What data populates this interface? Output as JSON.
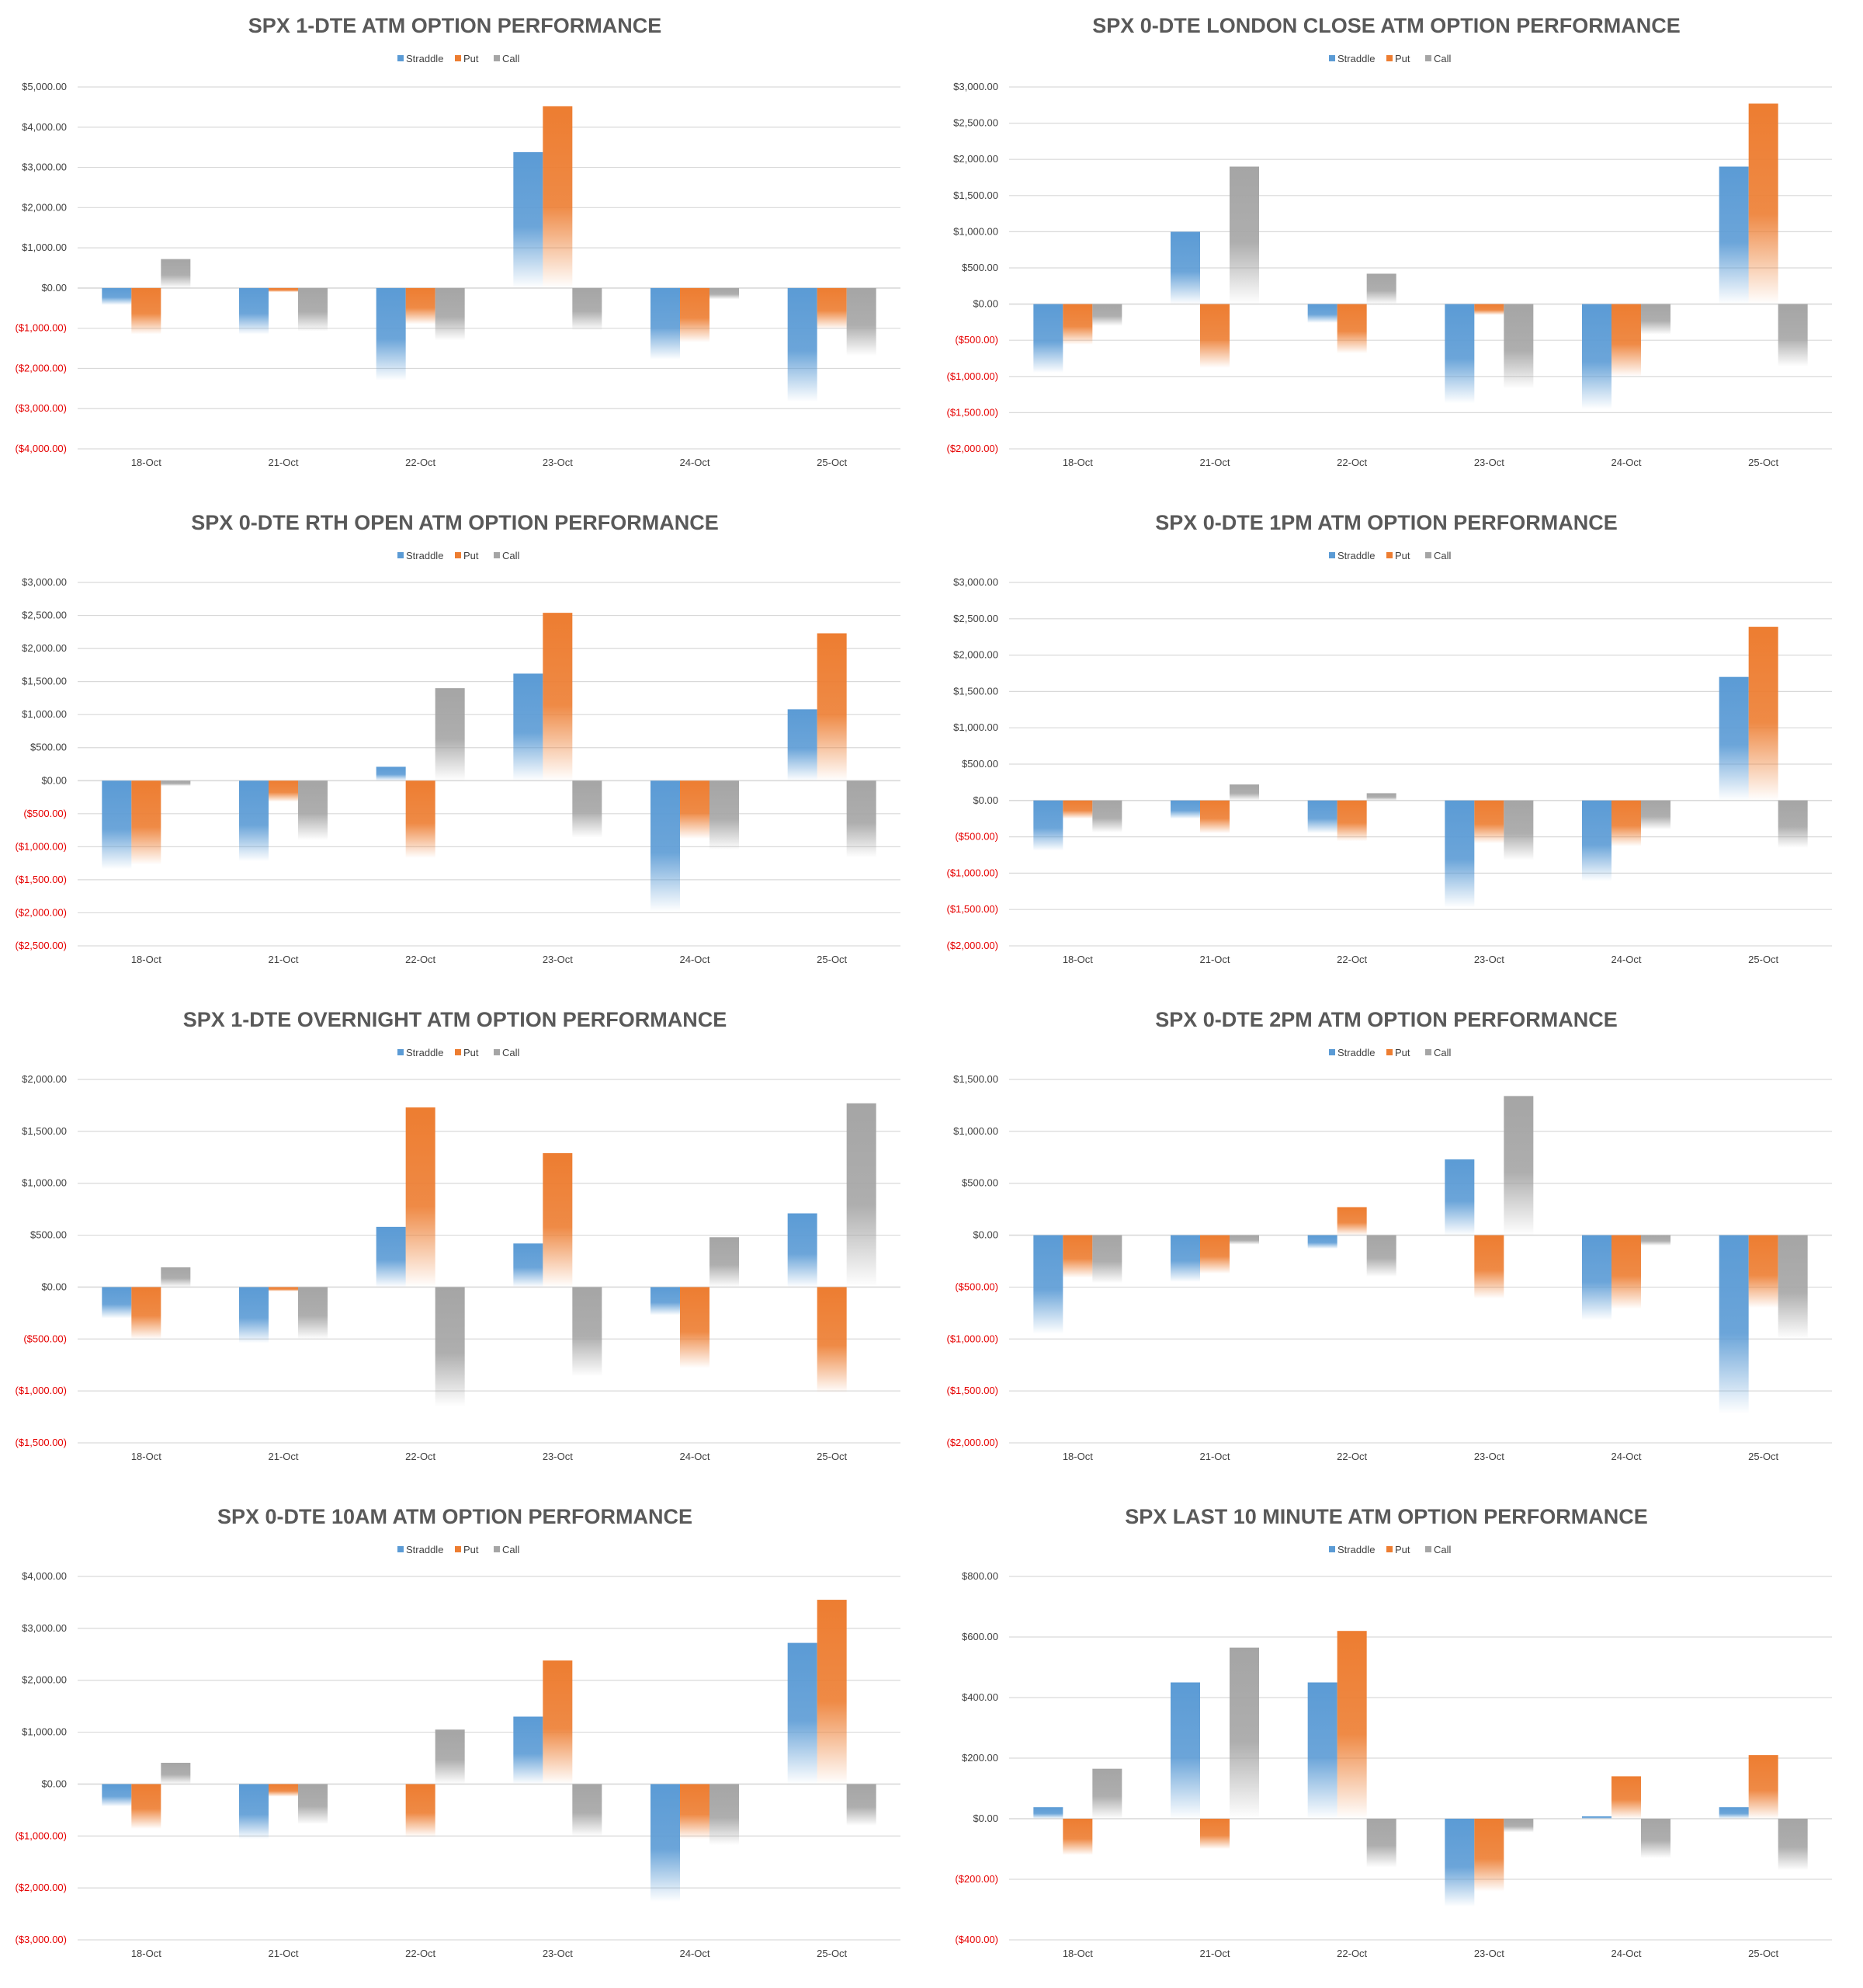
{
  "legend": [
    "Straddle",
    "Put",
    "Call"
  ],
  "colors": {
    "Straddle": "#5B9BD5",
    "Put": "#ED7D31",
    "Call": "#A5A5A5",
    "negative_tick": "#E60000",
    "tick": "#404040",
    "title": "#595959",
    "grid": "#D9D9D9"
  },
  "chart_data": [
    {
      "type": "bar",
      "title": "SPX 1-DTE ATM OPTION PERFORMANCE",
      "categories": [
        "18-Oct",
        "21-Oct",
        "22-Oct",
        "23-Oct",
        "24-Oct",
        "25-Oct"
      ],
      "yticks": [
        "$5,000.00",
        "$4,000.00",
        "$3,000.00",
        "$2,000.00",
        "$1,000.00",
        "$0.00",
        "($1,000.00)",
        "($2,000.00)",
        "($3,000.00)",
        "($4,000.00)"
      ],
      "ylim": [
        -4000,
        5000
      ],
      "legend_position": "top",
      "series": [
        {
          "name": "Straddle",
          "values": [
            -420,
            -1150,
            -2300,
            3380,
            -1780,
            -2830
          ]
        },
        {
          "name": "Put",
          "values": [
            -1150,
            -100,
            -900,
            4520,
            -1350,
            -1020
          ]
        },
        {
          "name": "Call",
          "values": [
            720,
            -1080,
            -1300,
            -1050,
            -280,
            -1680
          ]
        }
      ]
    },
    {
      "type": "bar",
      "title": "SPX 0-DTE  LONDON CLOSE ATM OPTION PERFORMANCE",
      "categories": [
        "18-Oct",
        "21-Oct",
        "22-Oct",
        "23-Oct",
        "24-Oct",
        "25-Oct"
      ],
      "yticks": [
        "$3,000.00",
        "$2,500.00",
        "$2,000.00",
        "$1,500.00",
        "$1,000.00",
        "$500.00",
        "$0.00",
        "($500.00)",
        "($1,000.00)",
        "($1,500.00)",
        "($2,000.00)"
      ],
      "ylim": [
        -2000,
        3000
      ],
      "legend_position": "top",
      "series": [
        {
          "name": "Straddle",
          "values": [
            -950,
            1000,
            -260,
            -1370,
            -1450,
            1900
          ]
        },
        {
          "name": "Put",
          "values": [
            -560,
            -880,
            -680,
            -150,
            -1000,
            2770
          ]
        },
        {
          "name": "Call",
          "values": [
            -300,
            1900,
            420,
            -1170,
            -420,
            -860
          ]
        }
      ]
    },
    {
      "type": "bar",
      "title": "SPX 0-DTE RTH OPEN ATM OPTION PERFORMANCE",
      "categories": [
        "18-Oct",
        "21-Oct",
        "22-Oct",
        "23-Oct",
        "24-Oct",
        "25-Oct"
      ],
      "yticks": [
        "$3,000.00",
        "$2,500.00",
        "$2,000.00",
        "$1,500.00",
        "$1,000.00",
        "$500.00",
        "$0.00",
        "($500.00)",
        "($1,000.00)",
        "($1,500.00)",
        "($2,000.00)",
        "($2,500.00)"
      ],
      "ylim": [
        -2500,
        3000
      ],
      "legend_position": "top",
      "series": [
        {
          "name": "Straddle",
          "values": [
            -1340,
            -1220,
            210,
            1620,
            -1980,
            1080
          ]
        },
        {
          "name": "Put",
          "values": [
            -1270,
            -320,
            -1170,
            2540,
            -880,
            2230
          ]
        },
        {
          "name": "Call",
          "values": [
            -80,
            -900,
            1400,
            -860,
            -1050,
            -1160
          ]
        }
      ]
    },
    {
      "type": "bar",
      "title": "SPX 0-DTE 1PM ATM OPTION PERFORMANCE",
      "categories": [
        "18-Oct",
        "21-Oct",
        "22-Oct",
        "23-Oct",
        "24-Oct",
        "25-Oct"
      ],
      "yticks": [
        "$3,000.00",
        "$2,500.00",
        "$2,000.00",
        "$1,500.00",
        "$1,000.00",
        "$500.00",
        "$0.00",
        "($500.00)",
        "($1,000.00)",
        "($1,500.00)",
        "($2,000.00)"
      ],
      "ylim": [
        -2000,
        3000
      ],
      "legend_position": "top",
      "series": [
        {
          "name": "Straddle",
          "values": [
            -690,
            -250,
            -450,
            -1470,
            -1110,
            1700
          ]
        },
        {
          "name": "Put",
          "values": [
            -250,
            -450,
            -560,
            -590,
            -630,
            2390
          ]
        },
        {
          "name": "Call",
          "values": [
            -440,
            220,
            100,
            -820,
            -400,
            -650
          ]
        }
      ]
    },
    {
      "type": "bar",
      "title": "SPX 1-DTE OVERNIGHT ATM OPTION PERFORMANCE",
      "categories": [
        "18-Oct",
        "21-Oct",
        "22-Oct",
        "23-Oct",
        "24-Oct",
        "25-Oct"
      ],
      "yticks": [
        "$2,000.00",
        "$1,500.00",
        "$1,000.00",
        "$500.00",
        "$0.00",
        "($500.00)",
        "($1,000.00)",
        "($1,500.00)"
      ],
      "ylim": [
        -1500,
        2000
      ],
      "legend_position": "top",
      "series": [
        {
          "name": "Straddle",
          "values": [
            -300,
            -540,
            580,
            420,
            -270,
            710
          ]
        },
        {
          "name": "Put",
          "values": [
            -500,
            -40,
            1730,
            1290,
            -780,
            -1020
          ]
        },
        {
          "name": "Call",
          "values": [
            190,
            -500,
            -1150,
            -860,
            480,
            1770
          ]
        }
      ]
    },
    {
      "type": "bar",
      "title": "SPX 0-DTE 2PM ATM OPTION PERFORMANCE",
      "categories": [
        "18-Oct",
        "21-Oct",
        "22-Oct",
        "23-Oct",
        "24-Oct",
        "25-Oct"
      ],
      "yticks": [
        "$1,500.00",
        "$1,000.00",
        "$500.00",
        "$0.00",
        "($500.00)",
        "($1,000.00)",
        "($1,500.00)",
        "($2,000.00)"
      ],
      "ylim": [
        -2000,
        1500
      ],
      "legend_position": "top",
      "series": [
        {
          "name": "Straddle",
          "values": [
            -950,
            -450,
            -130,
            730,
            -820,
            -1720
          ]
        },
        {
          "name": "Put",
          "values": [
            -410,
            -370,
            270,
            -610,
            -710,
            -700
          ]
        },
        {
          "name": "Call",
          "values": [
            -460,
            -90,
            -400,
            1340,
            -100,
            -1000
          ]
        }
      ]
    },
    {
      "type": "bar",
      "title": "SPX 0-DTE 10AM ATM OPTION PERFORMANCE",
      "categories": [
        "18-Oct",
        "21-Oct",
        "22-Oct",
        "23-Oct",
        "24-Oct",
        "25-Oct"
      ],
      "yticks": [
        "$4,000.00",
        "$3,000.00",
        "$2,000.00",
        "$1,000.00",
        "$0.00",
        "($1,000.00)",
        "($2,000.00)",
        "($3,000.00)"
      ],
      "ylim": [
        -3000,
        4000
      ],
      "legend_position": "top",
      "series": [
        {
          "name": "Straddle",
          "values": [
            -430,
            -1060,
            0,
            1300,
            -2270,
            2720
          ]
        },
        {
          "name": "Put",
          "values": [
            -860,
            -240,
            -1010,
            2380,
            -1060,
            3550
          ]
        },
        {
          "name": "Call",
          "values": [
            410,
            -770,
            1050,
            -1000,
            -1170,
            -800
          ]
        }
      ]
    },
    {
      "type": "bar",
      "title": "SPX LAST 10 MINUTE ATM OPTION PERFORMANCE",
      "categories": [
        "18-Oct",
        "21-Oct",
        "22-Oct",
        "23-Oct",
        "24-Oct",
        "25-Oct"
      ],
      "yticks": [
        "$800.00",
        "$600.00",
        "$400.00",
        "$200.00",
        "$0.00",
        "($200.00)",
        "($400.00)"
      ],
      "ylim": [
        -400,
        800
      ],
      "legend_position": "top",
      "series": [
        {
          "name": "Straddle",
          "values": [
            38,
            450,
            450,
            -290,
            8,
            38
          ]
        },
        {
          "name": "Put",
          "values": [
            -120,
            -100,
            620,
            -240,
            140,
            210
          ]
        },
        {
          "name": "Call",
          "values": [
            165,
            565,
            -160,
            -45,
            -130,
            -170
          ]
        }
      ]
    }
  ]
}
